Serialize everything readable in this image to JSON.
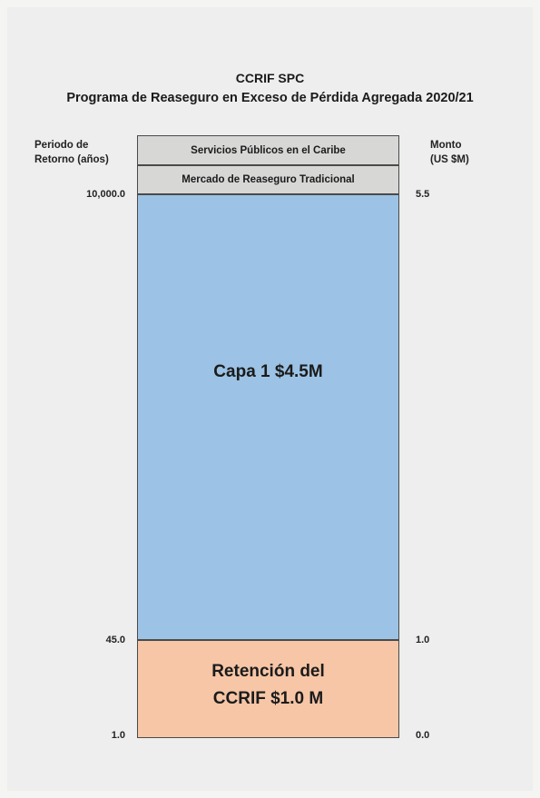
{
  "title": {
    "line1": "CCRIF SPC",
    "line2": "Programa de Reaseguro en Exceso de Pérdida Agregada 2020/21"
  },
  "left_axis": {
    "label": "Periodo de\nRetorno (años)",
    "ticks": [
      "10,000.0",
      "45.0",
      "1.0"
    ]
  },
  "right_axis": {
    "label": "Monto\n(US $M)",
    "ticks": [
      "5.5",
      "1.0",
      "0.0"
    ]
  },
  "layers": {
    "band_top": "Servicios Públicos en el Caribe",
    "band_second": "Mercado de Reaseguro Tradicional",
    "layer1": "Capa 1 $4.5M",
    "retention": "Retención del\nCCRIF $1.0 M"
  },
  "colors": {
    "layer1": "#9cc3e5",
    "retention": "#f6c6a6",
    "bands": "#d7d7d6"
  }
}
